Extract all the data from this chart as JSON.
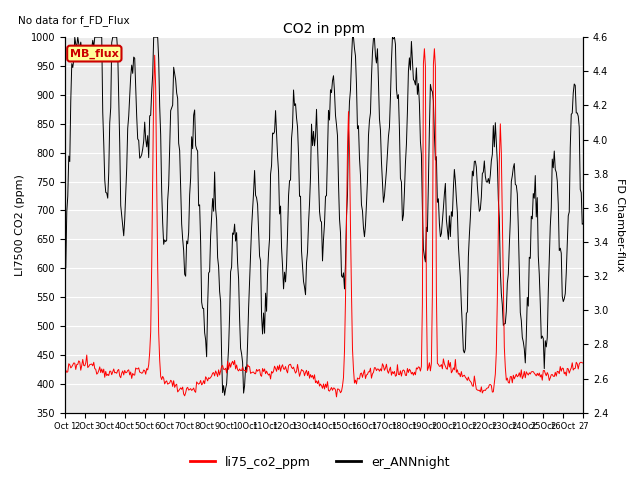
{
  "title": "CO2 in ppm",
  "top_left_text": "No data for f_FD_Flux",
  "ylabel_left": "LI7500 CO2 (ppm)",
  "ylabel_right": "FD Chamber-flux",
  "ylim_left": [
    350,
    1000
  ],
  "ylim_right": [
    2.4,
    4.6
  ],
  "yticks_left": [
    350,
    400,
    450,
    500,
    550,
    600,
    650,
    700,
    750,
    800,
    850,
    900,
    950,
    1000
  ],
  "yticks_right": [
    2.4,
    2.6,
    2.8,
    3.0,
    3.2,
    3.4,
    3.6,
    3.8,
    4.0,
    4.2,
    4.4,
    4.6
  ],
  "x_tick_labels": [
    "Oct 1",
    "2Oct",
    "3Oct",
    "4Oct",
    "5Oct",
    "6Oct",
    "7Oct",
    "8Oct",
    "9Oct",
    "10Oct",
    "11Oct",
    "12Oct",
    "13Oct",
    "14Oct",
    "15Oct",
    "16Oct",
    "17Oct",
    "18Oct",
    "19Oct",
    "20Oct",
    "21Oct",
    "22Oct",
    "23Oct",
    "24Oct",
    "25Oct",
    "26Oct",
    "27"
  ],
  "legend_labels": [
    "li75_co2_ppm",
    "er_ANNnight"
  ],
  "legend_colors": [
    "red",
    "black"
  ],
  "mb_flux_label": "MB_flux",
  "mb_flux_facecolor": "#ffff99",
  "mb_flux_edgecolor": "#cc0000",
  "background_color": "#ebebeb",
  "grid_color": "white",
  "line_color_red": "#ff0000",
  "line_color_black": "#000000",
  "fig_width": 6.4,
  "fig_height": 4.8,
  "dpi": 100
}
